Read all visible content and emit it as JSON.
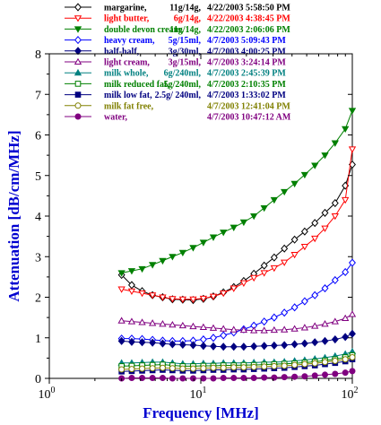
{
  "chart_data": {
    "type": "line",
    "xscale": "log",
    "xlim": [
      1,
      100
    ],
    "ylim": [
      0,
      8
    ],
    "xlabel": "Frequency [MHz]",
    "ylabel": "Attenuation [dB/cm/MHz]",
    "x_ticks": [
      {
        "value": 1,
        "base": "10",
        "exp": "0"
      },
      {
        "value": 10,
        "base": "10",
        "exp": "1"
      },
      {
        "value": 100,
        "base": "10",
        "exp": "2"
      }
    ],
    "y_ticks": [
      "0",
      "1",
      "2",
      "3",
      "4",
      "5",
      "6",
      "7",
      "8"
    ],
    "grid": false,
    "legend_position": "top",
    "x": [
      3.0,
      3.5,
      4.1,
      4.8,
      5.6,
      6.5,
      7.6,
      8.9,
      10.4,
      12.1,
      14.1,
      16.5,
      19.2,
      22.4,
      26.2,
      30.5,
      35.6,
      41.6,
      48.5,
      56.6,
      66.0,
      77.0,
      89.9,
      100.0
    ],
    "series": [
      {
        "name": "margarine",
        "label": "margarine,",
        "col2": "11g/14g,",
        "col3": "4/22/2003 5:58:50 PM",
        "color": "#000000",
        "marker": "diamond-open",
        "values": [
          2.55,
          2.3,
          2.15,
          2.05,
          2.0,
          1.95,
          1.94,
          1.93,
          1.96,
          2.02,
          2.12,
          2.25,
          2.4,
          2.58,
          2.78,
          2.98,
          3.2,
          3.42,
          3.62,
          3.83,
          4.08,
          4.32,
          4.75,
          5.27
        ]
      },
      {
        "name": "light butter",
        "label": "light butter,",
        "col2": "6g/14g,",
        "col3": "4/22/2003 4:38:45 PM",
        "color": "#ff0000",
        "marker": "triangle-down-open",
        "values": [
          2.2,
          2.15,
          2.1,
          2.05,
          2.0,
          1.96,
          1.95,
          1.95,
          1.97,
          2.02,
          2.1,
          2.22,
          2.35,
          2.48,
          2.6,
          2.72,
          2.86,
          3.05,
          3.25,
          3.45,
          3.7,
          4.0,
          4.4,
          5.65
        ]
      },
      {
        "name": "double devon cream",
        "label": "double devon cream,",
        "col2": "11g/14g,",
        "col3": "4/22/2003 2:06:06 PM",
        "color": "#008000",
        "marker": "triangle-down-filled",
        "values": [
          2.6,
          2.65,
          2.7,
          2.8,
          2.9,
          3.0,
          3.1,
          3.22,
          3.35,
          3.48,
          3.6,
          3.72,
          3.85,
          4.0,
          4.2,
          4.4,
          4.6,
          4.8,
          5.02,
          5.25,
          5.5,
          5.8,
          6.15,
          6.6
        ]
      },
      {
        "name": "heavy cream",
        "label": "heavy cream,",
        "col2": "5g/15ml,",
        "col3": "4/7/2003 5:09:43 PM",
        "color": "#0000ff",
        "marker": "diamond-open",
        "values": [
          0.98,
          0.98,
          0.97,
          0.95,
          0.93,
          0.92,
          0.92,
          0.93,
          0.96,
          1.0,
          1.06,
          1.13,
          1.21,
          1.3,
          1.4,
          1.5,
          1.62,
          1.75,
          1.9,
          2.05,
          2.22,
          2.42,
          2.62,
          2.85
        ]
      },
      {
        "name": "half-half",
        "label": "half-half,",
        "col2": "3g/30ml,",
        "col3": "4/7/2003 4:00:25 PM",
        "color": "#000080",
        "marker": "diamond-filled",
        "values": [
          0.92,
          0.9,
          0.89,
          0.88,
          0.86,
          0.84,
          0.83,
          0.82,
          0.8,
          0.79,
          0.78,
          0.78,
          0.78,
          0.79,
          0.8,
          0.81,
          0.82,
          0.84,
          0.86,
          0.89,
          0.92,
          0.96,
          1.02,
          1.1
        ]
      },
      {
        "name": "light cream",
        "label": "light cream,",
        "col2": "3g/15ml,",
        "col3": "4/7/2003 3:24:14 PM",
        "color": "#800080",
        "marker": "triangle-up-open",
        "values": [
          1.42,
          1.4,
          1.38,
          1.36,
          1.34,
          1.32,
          1.3,
          1.28,
          1.26,
          1.24,
          1.22,
          1.2,
          1.19,
          1.18,
          1.18,
          1.19,
          1.2,
          1.22,
          1.25,
          1.29,
          1.34,
          1.4,
          1.48,
          1.58
        ]
      },
      {
        "name": "milk whole",
        "label": "milk whole,",
        "col2": "6g/240ml,",
        "col3": "4/7/2003 2:45:39 PM",
        "color": "#008080",
        "marker": "triangle-up-filled",
        "values": [
          0.38,
          0.38,
          0.39,
          0.4,
          0.4,
          0.38,
          0.36,
          0.36,
          0.37,
          0.37,
          0.38,
          0.38,
          0.38,
          0.39,
          0.4,
          0.4,
          0.41,
          0.43,
          0.45,
          0.48,
          0.51,
          0.55,
          0.6,
          0.66
        ]
      },
      {
        "name": "milk reduced fat",
        "label": "milk reduced fat,",
        "col2": "5g/240ml,",
        "col3": "4/7/2003 2:10:35 PM",
        "color": "#008000",
        "marker": "square-open",
        "values": [
          0.3,
          0.31,
          0.32,
          0.33,
          0.34,
          0.32,
          0.3,
          0.3,
          0.31,
          0.31,
          0.32,
          0.32,
          0.33,
          0.33,
          0.34,
          0.35,
          0.36,
          0.37,
          0.39,
          0.41,
          0.44,
          0.47,
          0.52,
          0.57
        ]
      },
      {
        "name": "milk low fat",
        "label": "milk low fat,",
        "col2": "2.5g/ 240ml,",
        "col3": "4/7/2003 1:33:02 PM",
        "color": "#000080",
        "marker": "square-filled",
        "values": [
          0.17,
          0.18,
          0.19,
          0.2,
          0.21,
          0.2,
          0.19,
          0.19,
          0.2,
          0.21,
          0.21,
          0.22,
          0.22,
          0.23,
          0.24,
          0.25,
          0.26,
          0.28,
          0.3,
          0.32,
          0.35,
          0.38,
          0.42,
          0.47
        ]
      },
      {
        "name": "milk fat free",
        "label": "milk fat free,",
        "col2": "",
        "col3": "4/7/2003 12:41:04 PM",
        "color": "#808000",
        "marker": "circle-open",
        "values": [
          0.22,
          0.23,
          0.24,
          0.25,
          0.26,
          0.25,
          0.24,
          0.24,
          0.25,
          0.26,
          0.26,
          0.27,
          0.27,
          0.28,
          0.29,
          0.3,
          0.31,
          0.33,
          0.35,
          0.37,
          0.4,
          0.43,
          0.47,
          0.52
        ]
      },
      {
        "name": "water",
        "label": "water,",
        "col2": "",
        "col3": "4/7/2003 10:47:12 AM",
        "color": "#800080",
        "marker": "circle-filled",
        "values": [
          0.0,
          0.01,
          0.01,
          0.01,
          0.01,
          0.0,
          0.0,
          0.0,
          0.0,
          0.0,
          0.01,
          0.01,
          0.01,
          0.01,
          0.02,
          0.02,
          0.03,
          0.04,
          0.05,
          0.07,
          0.09,
          0.11,
          0.14,
          0.18
        ]
      }
    ]
  }
}
